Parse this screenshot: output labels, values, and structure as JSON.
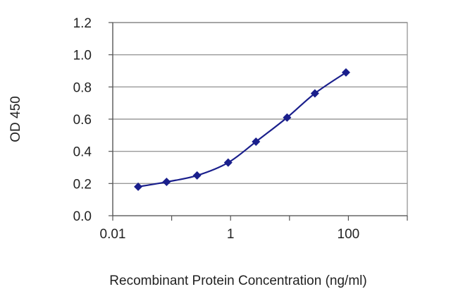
{
  "chart_data": {
    "type": "line",
    "title": "",
    "xlabel": "Recombinant Protein Concentration (ng/ml)",
    "ylabel": "OD 450",
    "x_scale": "log",
    "xlim": [
      0.01,
      1000
    ],
    "ylim": [
      0,
      1.2
    ],
    "grid": {
      "horizontal": true,
      "vertical": false
    },
    "legend": "none",
    "x_ticks": [
      {
        "value": 0.01,
        "label": "0.01"
      },
      {
        "value": 1,
        "label": "1"
      },
      {
        "value": 100,
        "label": "100"
      }
    ],
    "y_ticks": [
      {
        "value": 0.0,
        "label": "0.0"
      },
      {
        "value": 0.2,
        "label": "0.2"
      },
      {
        "value": 0.4,
        "label": "0.4"
      },
      {
        "value": 0.6,
        "label": "0.6"
      },
      {
        "value": 0.8,
        "label": "0.8"
      },
      {
        "value": 1.0,
        "label": "1.0"
      },
      {
        "value": 1.2,
        "label": "1.2"
      }
    ],
    "series": [
      {
        "x": [
          0.027,
          0.082,
          0.27,
          0.91,
          2.7,
          9.1,
          27,
          91
        ],
        "y": [
          0.18,
          0.21,
          0.25,
          0.33,
          0.46,
          0.61,
          0.76,
          0.89
        ],
        "color": "#1a1f8c",
        "marker": "diamond"
      }
    ],
    "colors": {
      "plot_border": "#8c8c8c",
      "gridline": "#9a9a9a",
      "axis": "#555555"
    }
  }
}
